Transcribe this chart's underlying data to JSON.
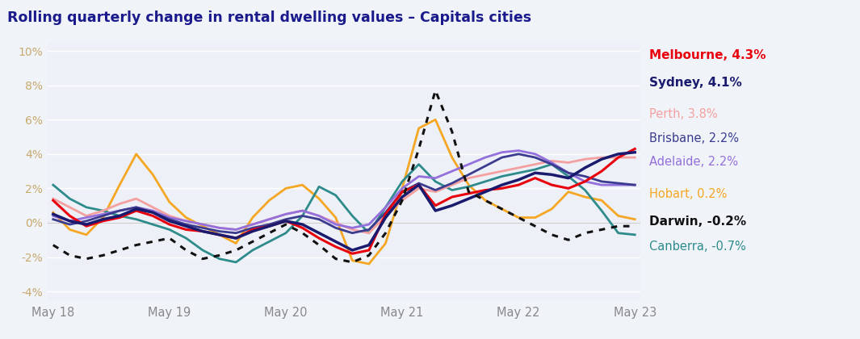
{
  "title": "Rolling quarterly change in rental dwelling values – Capitals cities",
  "title_color": "#1a1a8c",
  "background_color": "#f0f4f9",
  "plot_bg_color": "#edf1f7",
  "x_labels": [
    "May 18",
    "May 19",
    "May 20",
    "May 21",
    "May 22",
    "May 23"
  ],
  "ylim": [
    -4.5,
    10.5
  ],
  "yticks": [
    -4,
    -2,
    0,
    2,
    4,
    6,
    8,
    10
  ],
  "ytick_color": "#c8a96e",
  "xtick_color": "#888888",
  "legend": [
    {
      "label": "Melbourne, 4.3%",
      "color": "#e8000d",
      "bold": true,
      "gap_before": false
    },
    {
      "label": "Sydney, 4.1%",
      "color": "#1a1a6e",
      "bold": true,
      "gap_before": false
    },
    {
      "label": "Perth, 3.8%",
      "color": "#f4a0a0",
      "bold": false,
      "gap_before": true
    },
    {
      "label": "Brisbane, 2.2%",
      "color": "#3b3b8f",
      "bold": false,
      "gap_before": false
    },
    {
      "label": "Adelaide, 2.2%",
      "color": "#9370db",
      "bold": false,
      "gap_before": false
    },
    {
      "label": "Hobart, 0.2%",
      "color": "#f5a623",
      "bold": false,
      "gap_before": true
    },
    {
      "label": "Darwin, -0.2%",
      "color": "#111111",
      "bold": true,
      "gap_before": false
    },
    {
      "label": "Canberra, -0.7%",
      "color": "#2e8b8b",
      "bold": false,
      "gap_before": false
    }
  ],
  "series": {
    "Melbourne": {
      "color": "#e8000d",
      "lw": 2.2,
      "linestyle": "solid",
      "zorder": 8,
      "values": [
        1.3,
        0.4,
        -0.2,
        0.1,
        0.3,
        0.7,
        0.4,
        -0.1,
        -0.4,
        -0.5,
        -0.7,
        -0.9,
        -0.4,
        -0.2,
        0.1,
        -0.3,
        -0.9,
        -1.4,
        -1.8,
        -1.6,
        0.5,
        1.8,
        2.2,
        1.0,
        1.5,
        1.7,
        1.9,
        2.0,
        2.2,
        2.6,
        2.2,
        2.0,
        2.4,
        3.0,
        3.8,
        4.3
      ]
    },
    "Sydney": {
      "color": "#1a1a6e",
      "lw": 2.5,
      "linestyle": "solid",
      "zorder": 9,
      "values": [
        0.5,
        0.1,
        -0.1,
        0.2,
        0.4,
        0.8,
        0.6,
        0.1,
        -0.2,
        -0.5,
        -0.7,
        -0.9,
        -0.5,
        -0.2,
        0.1,
        -0.1,
        -0.6,
        -1.1,
        -1.6,
        -1.3,
        0.3,
        1.5,
        2.2,
        0.7,
        1.0,
        1.4,
        1.8,
        2.2,
        2.5,
        2.9,
        2.8,
        2.6,
        3.2,
        3.7,
        4.0,
        4.1
      ]
    },
    "Perth": {
      "color": "#f4a0a0",
      "lw": 2.0,
      "linestyle": "solid",
      "zorder": 6,
      "values": [
        1.4,
        0.9,
        0.4,
        0.7,
        1.1,
        1.4,
        0.9,
        0.4,
        0.1,
        -0.1,
        -0.3,
        -0.4,
        -0.1,
        0.2,
        0.5,
        0.7,
        0.4,
        0.0,
        -0.4,
        -0.6,
        0.4,
        1.3,
        2.0,
        1.8,
        2.2,
        2.6,
        2.8,
        3.0,
        3.2,
        3.4,
        3.6,
        3.5,
        3.7,
        3.8,
        3.8,
        3.8
      ]
    },
    "Brisbane": {
      "color": "#3b3b8f",
      "lw": 2.0,
      "linestyle": "solid",
      "zorder": 7,
      "values": [
        0.2,
        -0.1,
        0.1,
        0.4,
        0.7,
        0.9,
        0.6,
        0.2,
        -0.1,
        -0.3,
        -0.5,
        -0.6,
        -0.3,
        -0.1,
        0.2,
        0.4,
        0.2,
        -0.3,
        -0.6,
        -0.4,
        0.6,
        1.8,
        2.3,
        1.9,
        2.3,
        2.8,
        3.3,
        3.8,
        4.0,
        3.8,
        3.4,
        2.9,
        2.7,
        2.4,
        2.3,
        2.2
      ]
    },
    "Adelaide": {
      "color": "#9370db",
      "lw": 2.0,
      "linestyle": "solid",
      "zorder": 7,
      "values": [
        0.4,
        0.1,
        0.3,
        0.5,
        0.7,
        0.9,
        0.7,
        0.3,
        0.1,
        -0.1,
        -0.3,
        -0.4,
        -0.1,
        0.2,
        0.5,
        0.7,
        0.4,
        -0.1,
        -0.3,
        -0.1,
        0.9,
        2.0,
        2.7,
        2.6,
        3.0,
        3.4,
        3.8,
        4.1,
        4.2,
        4.0,
        3.5,
        2.9,
        2.4,
        2.2,
        2.2,
        2.2
      ]
    },
    "Hobart": {
      "color": "#f5a623",
      "lw": 2.0,
      "linestyle": "solid",
      "zorder": 5,
      "values": [
        0.6,
        -0.4,
        -0.7,
        0.3,
        2.2,
        4.0,
        2.8,
        1.2,
        0.3,
        -0.2,
        -0.7,
        -1.2,
        0.3,
        1.3,
        2.0,
        2.2,
        1.4,
        0.3,
        -2.2,
        -2.4,
        -1.2,
        2.0,
        5.5,
        6.0,
        3.8,
        2.2,
        1.3,
        0.8,
        0.3,
        0.3,
        0.8,
        1.8,
        1.5,
        1.3,
        0.4,
        0.2
      ]
    },
    "Darwin": {
      "color": "#111111",
      "lw": 2.2,
      "linestyle": "dotted",
      "zorder": 10,
      "values": [
        -1.3,
        -1.9,
        -2.1,
        -1.9,
        -1.6,
        -1.3,
        -1.1,
        -0.9,
        -1.6,
        -2.1,
        -1.9,
        -1.6,
        -1.1,
        -0.6,
        -0.1,
        -0.6,
        -1.3,
        -2.1,
        -2.3,
        -1.9,
        -0.6,
        1.3,
        4.3,
        7.7,
        5.3,
        1.8,
        1.3,
        0.8,
        0.3,
        -0.2,
        -0.7,
        -1.0,
        -0.6,
        -0.4,
        -0.2,
        -0.2
      ]
    },
    "Canberra": {
      "color": "#2e8b8b",
      "lw": 2.0,
      "linestyle": "solid",
      "zorder": 6,
      "values": [
        2.2,
        1.4,
        0.9,
        0.7,
        0.4,
        0.2,
        -0.1,
        -0.4,
        -0.9,
        -1.6,
        -2.1,
        -2.3,
        -1.6,
        -1.1,
        -0.6,
        0.4,
        2.1,
        1.6,
        0.4,
        -0.6,
        0.9,
        2.4,
        3.4,
        2.4,
        1.9,
        2.1,
        2.4,
        2.7,
        2.9,
        3.1,
        3.4,
        2.7,
        1.9,
        0.7,
        -0.6,
        -0.7
      ]
    }
  }
}
